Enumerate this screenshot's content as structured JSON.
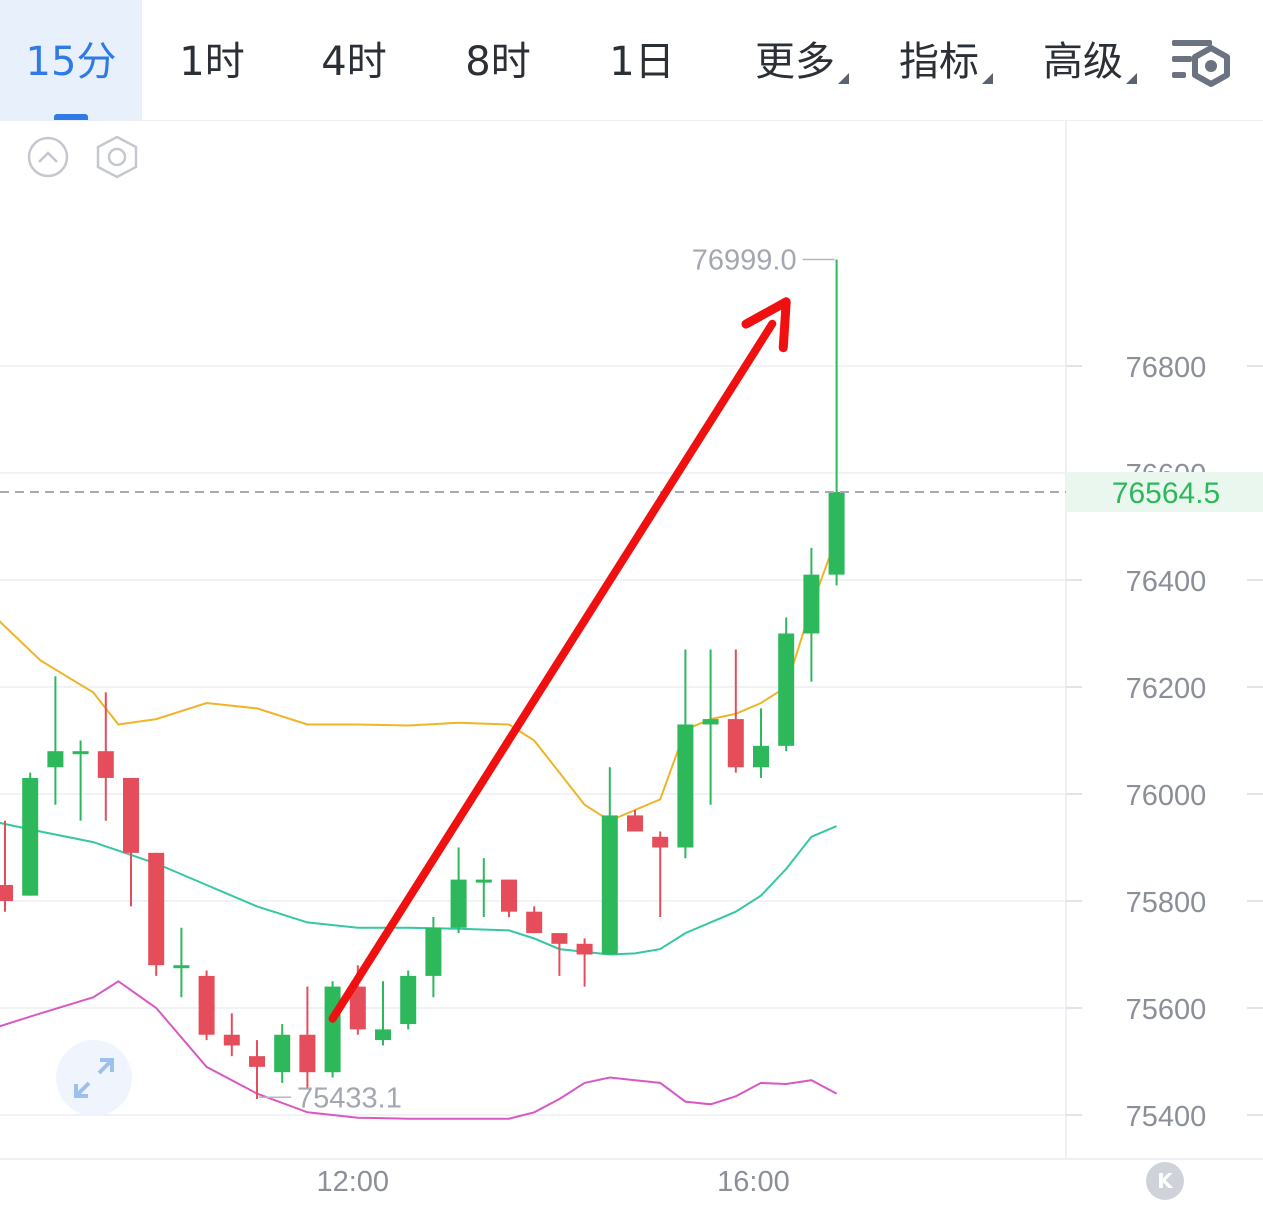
{
  "tabs": [
    {
      "label": "15分",
      "active": true
    },
    {
      "label": "1时"
    },
    {
      "label": "4时"
    },
    {
      "label": "8时"
    },
    {
      "label": "1日"
    },
    {
      "label": "更多",
      "dropdown": true
    },
    {
      "label": "指标",
      "dropdown": true
    },
    {
      "label": "高级",
      "dropdown": true
    }
  ],
  "icons": {
    "collapse": "chevron-up-circle-icon",
    "settings_hex": "hexagon-settings-icon",
    "toolbar_settings": "list-gear-icon",
    "fullscreen": "expand-arrows-icon",
    "jump_latest": "jump-to-latest-icon"
  },
  "jump_label": "K",
  "colors": {
    "up": "#2eb85c",
    "down": "#e54d5b",
    "accent": "#2f7ae5",
    "ma_upper": "#f0b429",
    "ma_mid": "#35c7a4",
    "ma_lower": "#d959c3",
    "arrow": "#f01010"
  },
  "chart_data": {
    "type": "candlestick",
    "interval": "15分",
    "x_ticks": [
      "12:00",
      "16:00"
    ],
    "y_ticks": [
      76800,
      76600,
      76400,
      76200,
      76000,
      75800,
      75600,
      75400
    ],
    "y_tick_labels": [
      "76800",
      "76600",
      "76400",
      "76200",
      "76000",
      "75800",
      "75600",
      "75400"
    ],
    "ylim": [
      75360,
      77230
    ],
    "current_price": "76564.5",
    "max_label": "76999.0",
    "min_label": "75433.1",
    "candles": [
      {
        "open": 75830,
        "close": 75800,
        "high": 75950,
        "low": 75780
      },
      {
        "open": 75810,
        "close": 76030,
        "high": 76040,
        "low": 75810
      },
      {
        "open": 76050,
        "close": 76080,
        "high": 76220,
        "low": 75980
      },
      {
        "open": 76080,
        "close": 76080,
        "high": 76100,
        "low": 75950
      },
      {
        "open": 76080,
        "close": 76030,
        "high": 76190,
        "low": 75950
      },
      {
        "open": 76030,
        "close": 75890,
        "high": 76030,
        "low": 75790
      },
      {
        "open": 75890,
        "close": 75680,
        "high": 75890,
        "low": 75660
      },
      {
        "open": 75680,
        "close": 75680,
        "high": 75750,
        "low": 75620
      },
      {
        "open": 75660,
        "close": 75550,
        "high": 75670,
        "low": 75540
      },
      {
        "open": 75550,
        "close": 75530,
        "high": 75590,
        "low": 75510
      },
      {
        "open": 75510,
        "close": 75490,
        "high": 75540,
        "low": 75430
      },
      {
        "open": 75480,
        "close": 75550,
        "high": 75570,
        "low": 75460
      },
      {
        "open": 75550,
        "close": 75480,
        "high": 75640,
        "low": 75450
      },
      {
        "open": 75480,
        "close": 75640,
        "high": 75650,
        "low": 75470
      },
      {
        "open": 75640,
        "close": 75560,
        "high": 75680,
        "low": 75550
      },
      {
        "open": 75540,
        "close": 75560,
        "high": 75650,
        "low": 75530
      },
      {
        "open": 75570,
        "close": 75660,
        "high": 75670,
        "low": 75560
      },
      {
        "open": 75660,
        "close": 75750,
        "high": 75770,
        "low": 75620
      },
      {
        "open": 75750,
        "close": 75840,
        "high": 75900,
        "low": 75740
      },
      {
        "open": 75840,
        "close": 75840,
        "high": 75880,
        "low": 75770
      },
      {
        "open": 75840,
        "close": 75780,
        "high": 75840,
        "low": 75770
      },
      {
        "open": 75780,
        "close": 75740,
        "high": 75790,
        "low": 75740
      },
      {
        "open": 75740,
        "close": 75720,
        "high": 75740,
        "low": 75660
      },
      {
        "open": 75720,
        "close": 75700,
        "high": 75730,
        "low": 75640
      },
      {
        "open": 75700,
        "close": 75960,
        "high": 76050,
        "low": 75700
      },
      {
        "open": 75960,
        "close": 75930,
        "high": 75970,
        "low": 75930
      },
      {
        "open": 75920,
        "close": 75900,
        "high": 75930,
        "low": 75770
      },
      {
        "open": 75900,
        "close": 76130,
        "high": 76270,
        "low": 75880
      },
      {
        "open": 76130,
        "close": 76140,
        "high": 76270,
        "low": 75980
      },
      {
        "open": 76140,
        "close": 76050,
        "high": 76270,
        "low": 76040
      },
      {
        "open": 76050,
        "close": 76090,
        "high": 76160,
        "low": 76030
      },
      {
        "open": 76090,
        "close": 76300,
        "high": 76330,
        "low": 76080
      },
      {
        "open": 76300,
        "close": 76410,
        "high": 76460,
        "low": 76210
      },
      {
        "open": 76410,
        "close": 76564.5,
        "high": 76999,
        "low": 76390
      }
    ],
    "bollinger_upper": [
      {
        "i": -0.6,
        "v": 76340
      },
      {
        "i": 1.4,
        "v": 76250
      },
      {
        "i": 3.5,
        "v": 76190
      },
      {
        "i": 4.5,
        "v": 76130
      },
      {
        "i": 6.0,
        "v": 76140
      },
      {
        "i": 8.0,
        "v": 76170
      },
      {
        "i": 10.0,
        "v": 76160
      },
      {
        "i": 12.0,
        "v": 76130
      },
      {
        "i": 14.0,
        "v": 76130
      },
      {
        "i": 16.0,
        "v": 76128
      },
      {
        "i": 18.0,
        "v": 76133
      },
      {
        "i": 20.0,
        "v": 76130
      },
      {
        "i": 21.0,
        "v": 76100
      },
      {
        "i": 23.0,
        "v": 75980
      },
      {
        "i": 24.0,
        "v": 75950
      },
      {
        "i": 25.0,
        "v": 75970
      },
      {
        "i": 26.0,
        "v": 75990
      },
      {
        "i": 27.0,
        "v": 76120
      },
      {
        "i": 28.0,
        "v": 76140
      },
      {
        "i": 29.0,
        "v": 76150
      },
      {
        "i": 30.0,
        "v": 76170
      },
      {
        "i": 31.0,
        "v": 76200
      },
      {
        "i": 32.0,
        "v": 76350
      },
      {
        "i": 33.0,
        "v": 76480
      }
    ],
    "bollinger_middle": [
      {
        "i": -0.6,
        "v": 75950
      },
      {
        "i": 1.4,
        "v": 75930
      },
      {
        "i": 3.5,
        "v": 75910
      },
      {
        "i": 6.0,
        "v": 75870
      },
      {
        "i": 8.0,
        "v": 75830
      },
      {
        "i": 10.0,
        "v": 75790
      },
      {
        "i": 12.0,
        "v": 75760
      },
      {
        "i": 14.0,
        "v": 75750
      },
      {
        "i": 16.0,
        "v": 75750
      },
      {
        "i": 18.0,
        "v": 75748
      },
      {
        "i": 20.0,
        "v": 75745
      },
      {
        "i": 21.0,
        "v": 75730
      },
      {
        "i": 22.0,
        "v": 75710
      },
      {
        "i": 24.0,
        "v": 75700
      },
      {
        "i": 25.0,
        "v": 75702
      },
      {
        "i": 26.0,
        "v": 75710
      },
      {
        "i": 27.0,
        "v": 75740
      },
      {
        "i": 29.0,
        "v": 75780
      },
      {
        "i": 30.0,
        "v": 75810
      },
      {
        "i": 31.0,
        "v": 75860
      },
      {
        "i": 32.0,
        "v": 75920
      },
      {
        "i": 33.0,
        "v": 75940
      }
    ],
    "bollinger_lower": [
      {
        "i": -0.6,
        "v": 75560
      },
      {
        "i": 1.4,
        "v": 75590
      },
      {
        "i": 3.5,
        "v": 75620
      },
      {
        "i": 4.5,
        "v": 75650
      },
      {
        "i": 6.0,
        "v": 75600
      },
      {
        "i": 8.0,
        "v": 75490
      },
      {
        "i": 10.0,
        "v": 75440
      },
      {
        "i": 12.0,
        "v": 75405
      },
      {
        "i": 14.0,
        "v": 75395
      },
      {
        "i": 16.0,
        "v": 75393
      },
      {
        "i": 18.0,
        "v": 75393
      },
      {
        "i": 20.0,
        "v": 75393
      },
      {
        "i": 21.0,
        "v": 75405
      },
      {
        "i": 22.0,
        "v": 75430
      },
      {
        "i": 23.0,
        "v": 75460
      },
      {
        "i": 24.0,
        "v": 75470
      },
      {
        "i": 25.0,
        "v": 75465
      },
      {
        "i": 26.0,
        "v": 75460
      },
      {
        "i": 27.0,
        "v": 75425
      },
      {
        "i": 28.0,
        "v": 75420
      },
      {
        "i": 29.0,
        "v": 75435
      },
      {
        "i": 30.0,
        "v": 75460
      },
      {
        "i": 31.0,
        "v": 75458
      },
      {
        "i": 32.0,
        "v": 75465
      },
      {
        "i": 33.0,
        "v": 75440
      }
    ],
    "grid": true,
    "annotation_arrow": {
      "from": {
        "i": 13,
        "v": 75580
      },
      "to": {
        "i": 31,
        "v": 76920
      }
    }
  }
}
